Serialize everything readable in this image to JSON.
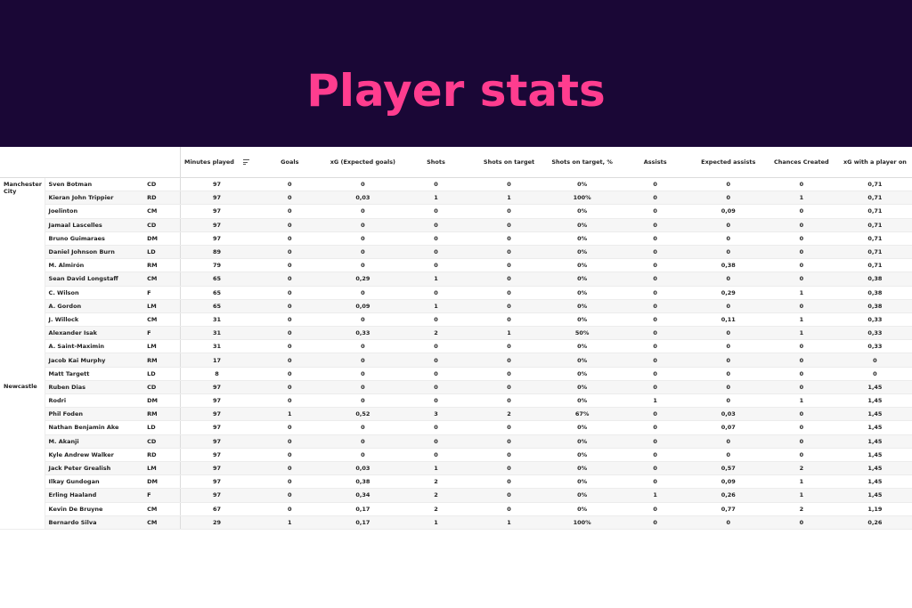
{
  "header": {
    "title": "Player stats"
  },
  "table": {
    "columns": [
      {
        "key": "minutes",
        "label": "Minutes played"
      },
      {
        "key": "goals",
        "label": "Goals"
      },
      {
        "key": "xg",
        "label": "xG (Expected goals)"
      },
      {
        "key": "shots",
        "label": "Shots"
      },
      {
        "key": "sot",
        "label": "Shots on target"
      },
      {
        "key": "sotpct",
        "label": "Shots on target, %"
      },
      {
        "key": "assists",
        "label": "Assists"
      },
      {
        "key": "xa",
        "label": "Expected assists"
      },
      {
        "key": "chances",
        "label": "Chances Created"
      },
      {
        "key": "xgon",
        "label": "xG with a player on"
      }
    ],
    "sort_icon": "sort-descending-icon",
    "teams": [
      {
        "name": "Manchester City",
        "players": [
          {
            "name": "Sven Botman",
            "pos": "CD",
            "values": [
              "97",
              "0",
              "0",
              "0",
              "0",
              "0%",
              "0",
              "0",
              "0",
              "0,71"
            ]
          },
          {
            "name": "Kieran John Trippier",
            "pos": "RD",
            "values": [
              "97",
              "0",
              "0,03",
              "1",
              "1",
              "100%",
              "0",
              "0",
              "1",
              "0,71"
            ]
          },
          {
            "name": "Joelinton",
            "pos": "CM",
            "values": [
              "97",
              "0",
              "0",
              "0",
              "0",
              "0%",
              "0",
              "0,09",
              "0",
              "0,71"
            ]
          },
          {
            "name": "Jamaal Lascelles",
            "pos": "CD",
            "values": [
              "97",
              "0",
              "0",
              "0",
              "0",
              "0%",
              "0",
              "0",
              "0",
              "0,71"
            ]
          },
          {
            "name": "Bruno Guimaraes",
            "pos": "DM",
            "values": [
              "97",
              "0",
              "0",
              "0",
              "0",
              "0%",
              "0",
              "0",
              "0",
              "0,71"
            ]
          },
          {
            "name": "Daniel Johnson Burn",
            "pos": "LD",
            "values": [
              "89",
              "0",
              "0",
              "0",
              "0",
              "0%",
              "0",
              "0",
              "0",
              "0,71"
            ]
          },
          {
            "name": "M. Almirón",
            "pos": "RM",
            "values": [
              "79",
              "0",
              "0",
              "0",
              "0",
              "0%",
              "0",
              "0,38",
              "0",
              "0,71"
            ]
          },
          {
            "name": "Sean David Longstaff",
            "pos": "CM",
            "values": [
              "65",
              "0",
              "0,29",
              "1",
              "0",
              "0%",
              "0",
              "0",
              "0",
              "0,38"
            ]
          },
          {
            "name": "C. Wilson",
            "pos": "F",
            "values": [
              "65",
              "0",
              "0",
              "0",
              "0",
              "0%",
              "0",
              "0,29",
              "1",
              "0,38"
            ]
          },
          {
            "name": "A. Gordon",
            "pos": "LM",
            "values": [
              "65",
              "0",
              "0,09",
              "1",
              "0",
              "0%",
              "0",
              "0",
              "0",
              "0,38"
            ]
          },
          {
            "name": "J. Willock",
            "pos": "CM",
            "values": [
              "31",
              "0",
              "0",
              "0",
              "0",
              "0%",
              "0",
              "0,11",
              "1",
              "0,33"
            ]
          },
          {
            "name": "Alexander Isak",
            "pos": "F",
            "values": [
              "31",
              "0",
              "0,33",
              "2",
              "1",
              "50%",
              "0",
              "0",
              "1",
              "0,33"
            ]
          },
          {
            "name": "A. Saint-Maximin",
            "pos": "LM",
            "values": [
              "31",
              "0",
              "0",
              "0",
              "0",
              "0%",
              "0",
              "0",
              "0",
              "0,33"
            ]
          },
          {
            "name": "Jacob Kai Murphy",
            "pos": "RM",
            "values": [
              "17",
              "0",
              "0",
              "0",
              "0",
              "0%",
              "0",
              "0",
              "0",
              "0"
            ]
          },
          {
            "name": "Matt Targett",
            "pos": "LD",
            "values": [
              "8",
              "0",
              "0",
              "0",
              "0",
              "0%",
              "0",
              "0",
              "0",
              "0"
            ]
          }
        ]
      },
      {
        "name": "Newcastle",
        "players": [
          {
            "name": "Ruben Dias",
            "pos": "CD",
            "values": [
              "97",
              "0",
              "0",
              "0",
              "0",
              "0%",
              "0",
              "0",
              "0",
              "1,45"
            ]
          },
          {
            "name": "Rodri",
            "pos": "DM",
            "values": [
              "97",
              "0",
              "0",
              "0",
              "0",
              "0%",
              "1",
              "0",
              "1",
              "1,45"
            ]
          },
          {
            "name": "Phil Foden",
            "pos": "RM",
            "values": [
              "97",
              "1",
              "0,52",
              "3",
              "2",
              "67%",
              "0",
              "0,03",
              "0",
              "1,45"
            ]
          },
          {
            "name": "Nathan Benjamin Ake",
            "pos": "LD",
            "values": [
              "97",
              "0",
              "0",
              "0",
              "0",
              "0%",
              "0",
              "0,07",
              "0",
              "1,45"
            ]
          },
          {
            "name": "M. Akanji",
            "pos": "CD",
            "values": [
              "97",
              "0",
              "0",
              "0",
              "0",
              "0%",
              "0",
              "0",
              "0",
              "1,45"
            ]
          },
          {
            "name": "Kyle Andrew Walker",
            "pos": "RD",
            "values": [
              "97",
              "0",
              "0",
              "0",
              "0",
              "0%",
              "0",
              "0",
              "0",
              "1,45"
            ]
          },
          {
            "name": "Jack Peter Grealish",
            "pos": "LM",
            "values": [
              "97",
              "0",
              "0,03",
              "1",
              "0",
              "0%",
              "0",
              "0,57",
              "2",
              "1,45"
            ]
          },
          {
            "name": "Ilkay Gundogan",
            "pos": "DM",
            "values": [
              "97",
              "0",
              "0,38",
              "2",
              "0",
              "0%",
              "0",
              "0,09",
              "1",
              "1,45"
            ]
          },
          {
            "name": "Erling Haaland",
            "pos": "F",
            "values": [
              "97",
              "0",
              "0,34",
              "2",
              "0",
              "0%",
              "1",
              "0,26",
              "1",
              "1,45"
            ]
          },
          {
            "name": "Kevin De Bruyne",
            "pos": "CM",
            "values": [
              "67",
              "0",
              "0,17",
              "2",
              "0",
              "0%",
              "0",
              "0,77",
              "2",
              "1,19"
            ]
          },
          {
            "name": "Bernardo Silva",
            "pos": "CM",
            "values": [
              "29",
              "1",
              "0,17",
              "1",
              "1",
              "100%",
              "0",
              "0",
              "0",
              "0,26"
            ]
          }
        ]
      }
    ]
  }
}
